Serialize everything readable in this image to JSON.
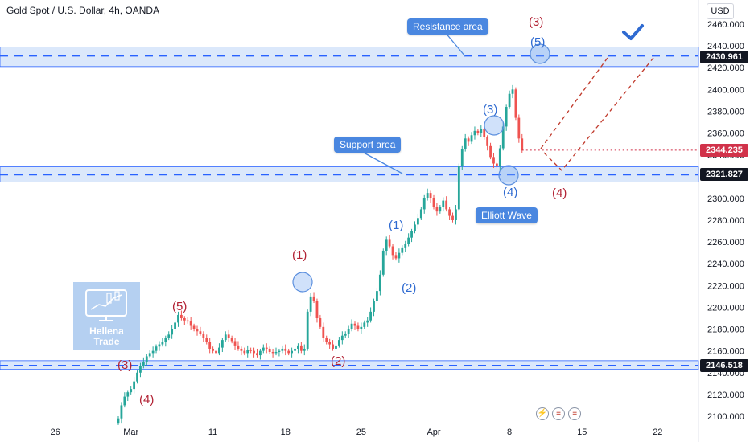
{
  "header": {
    "symbol": "Gold Spot / U.S. Dollar, 4h, OANDA",
    "currency": "USD"
  },
  "colors": {
    "up": "#26a69a",
    "down": "#ef5350",
    "zone_fill": "#dbe8fb",
    "zone_line": "#2962ff",
    "callout": "#4a87e0",
    "wave_red": "#b22234",
    "wave_blue": "#2e6ad1",
    "current_price": "#d1324a",
    "level_tag": "#131722"
  },
  "callouts": {
    "resistance": "Resistance area",
    "support": "Support area",
    "elliott": "Elliott Wave"
  },
  "waves": {
    "w1_red": "(1)",
    "w2_red": "(2)",
    "w3_red_left": "(3)",
    "w4_red_left": "(4)",
    "w5_red_left": "(5)",
    "w3_red_top": "(3)",
    "w4_red_right": "(4)",
    "w1_blue": "(1)",
    "w2_blue": "(2)",
    "w3_blue": "(3)",
    "w4_blue": "(4)",
    "w5_blue": "(5)"
  },
  "price_tags": {
    "resistance_level": "2430.961",
    "current_price": "2344.235",
    "support_level": "2321.827",
    "bottom_level": "2146.518"
  },
  "logo": {
    "name_line1": "Hellena",
    "name_line2": "Trade"
  },
  "chart_data": {
    "type": "candlestick",
    "timeframe": "4h",
    "instrument": "XAUUSD",
    "y_axis": {
      "range": [
        2095,
        2462
      ],
      "ticks": [
        2460,
        2440,
        2420,
        2400,
        2380,
        2360,
        2340,
        2320,
        2300,
        2280,
        2260,
        2240,
        2220,
        2200,
        2180,
        2160,
        2140,
        2120,
        2100
      ],
      "tick_labels": [
        "2460.000",
        "2440.000",
        "2420.000",
        "2400.000",
        "2380.000",
        "2360.000",
        "2340.000",
        "2320.000",
        "2300.000",
        "2280.000",
        "2260.000",
        "2240.000",
        "2220.000",
        "2200.000",
        "2180.000",
        "2160.000",
        "2140.000",
        "2120.000",
        "2100.000"
      ]
    },
    "x_axis": {
      "tick_labels": [
        "26",
        "Mar",
        "11",
        "18",
        "25",
        "Apr",
        "8",
        "15",
        "22"
      ],
      "tick_index": [
        -20,
        4,
        30,
        53,
        77,
        100,
        124,
        147,
        171
      ]
    },
    "zones": [
      {
        "name": "resistance",
        "low": 2421,
        "high": 2439,
        "level": 2430.961
      },
      {
        "name": "support",
        "low": 2315,
        "high": 2329,
        "level": 2321.827
      },
      {
        "name": "bottom",
        "low": 2143,
        "high": 2151,
        "level": 2146.518
      }
    ],
    "current_price": 2344.235,
    "closes": [
      2098,
      2110,
      2118,
      2122,
      2125,
      2132,
      2140,
      2146,
      2150,
      2155,
      2158,
      2160,
      2164,
      2166,
      2168,
      2172,
      2175,
      2180,
      2186,
      2193,
      2190,
      2188,
      2187,
      2183,
      2180,
      2178,
      2176,
      2172,
      2168,
      2162,
      2160,
      2158,
      2163,
      2170,
      2175,
      2172,
      2169,
      2165,
      2162,
      2160,
      2158,
      2161,
      2160,
      2158,
      2156,
      2160,
      2163,
      2162,
      2159,
      2158,
      2159,
      2160,
      2162,
      2160,
      2158,
      2160,
      2162,
      2165,
      2160,
      2162,
      2196,
      2210,
      2206,
      2190,
      2182,
      2172,
      2168,
      2166,
      2162,
      2165,
      2170,
      2174,
      2176,
      2180,
      2185,
      2183,
      2180,
      2182,
      2186,
      2188,
      2196,
      2206,
      2215,
      2230,
      2252,
      2262,
      2256,
      2248,
      2245,
      2250,
      2255,
      2258,
      2264,
      2270,
      2276,
      2282,
      2290,
      2300,
      2305,
      2300,
      2292,
      2288,
      2292,
      2298,
      2290,
      2284,
      2280,
      2290,
      2330,
      2345,
      2355,
      2352,
      2358,
      2362,
      2360,
      2364,
      2356,
      2348,
      2338,
      2332,
      2330,
      2346,
      2366,
      2384,
      2396,
      2400,
      2374,
      2355,
      2344
    ],
    "wave_labels": [
      {
        "label": "(3)",
        "degree": "red",
        "price": 2140
      },
      {
        "label": "(4)",
        "degree": "red",
        "price": 2115
      },
      {
        "label": "(5)",
        "degree": "red",
        "price": 2195
      },
      {
        "label": "(1)",
        "degree": "red",
        "price": 2225
      },
      {
        "label": "(2)",
        "degree": "red",
        "price": 2158
      },
      {
        "label": "(1)",
        "degree": "blue",
        "price": 2264
      },
      {
        "label": "(2)",
        "degree": "blue",
        "price": 2235
      },
      {
        "label": "(3)",
        "degree": "blue",
        "price": 2366
      },
      {
        "label": "(4)",
        "degree": "blue",
        "price": 2320
      },
      {
        "label": "(5)",
        "degree": "blue",
        "price": 2431
      },
      {
        "label": "(3)",
        "degree": "red",
        "price": 2431
      },
      {
        "label": "(4)",
        "degree": "red",
        "price": 2322
      }
    ],
    "projection_paths": [
      [
        [
          2344,
          "now"
        ],
        [
          2322,
          "support"
        ],
        [
          2431,
          "resistance"
        ]
      ],
      [
        [
          2344,
          "now"
        ],
        [
          2431,
          "resistance"
        ]
      ]
    ]
  }
}
